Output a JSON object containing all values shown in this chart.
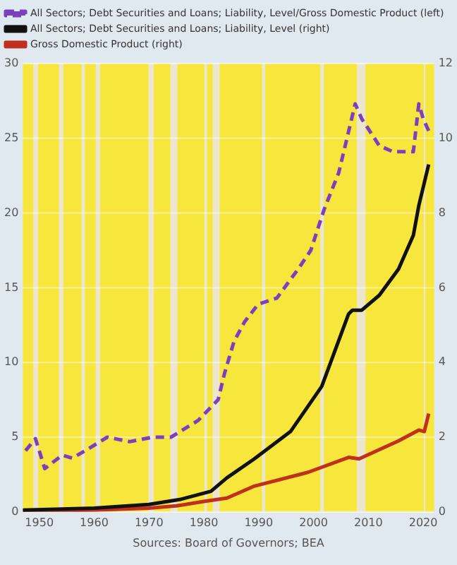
{
  "chart_data": {
    "type": "line",
    "annotations": [
      "Sources: Board of Governors; BEA"
    ],
    "xlim": [
      1947,
      2022
    ],
    "xticks": [
      1950,
      1960,
      1970,
      1980,
      1990,
      2000,
      2010,
      2020
    ],
    "ylim": [
      0,
      30
    ],
    "yticks": [
      0,
      5,
      10,
      15,
      20,
      25,
      30
    ],
    "y2lim": [
      0,
      12
    ],
    "y2ticks": [
      0,
      2,
      4,
      6,
      8,
      10,
      12
    ],
    "grid": "y",
    "legend": "top left",
    "marker": "none",
    "series": [
      {
        "name": "All Sectors; Debt Securities and Loans; Liability, Level/Gross Domestic Product (left)",
        "color": "#7b3fbf",
        "line_style": "dashed",
        "x": [
          1947.5,
          1949.3,
          1951,
          1954.2,
          1956,
          1958.4,
          1962.4,
          1966.5,
          1970.7,
          1974,
          1978.9,
          1982.6,
          1983.8,
          1985.5,
          1987.4,
          1989.9,
          1993.3,
          1997.3,
          1999.5,
          2001.9,
          2004.6,
          2007.6,
          2008.8,
          2012,
          2014.5,
          2018.2,
          2019.2,
          2020,
          2021
        ],
        "values": [
          4.1,
          4.9,
          2.9,
          3.8,
          3.6,
          4.1,
          5.0,
          4.7,
          5.0,
          5.0,
          6.1,
          7.5,
          9.3,
          11.4,
          12.7,
          13.9,
          14.3,
          16.3,
          17.5,
          20.2,
          22.7,
          27.3,
          26.3,
          24.5,
          24.1,
          24.1,
          27.3,
          26.3,
          25.5
        ]
      },
      {
        "name": "All Sectors; Debt Securities and Loans; Liability, Level (right)",
        "color": "#111111",
        "axis": "y2",
        "line_style": "solid",
        "x": [
          1947,
          1960,
          1970,
          1975.6,
          1981.3,
          1984.2,
          1989.2,
          1995.8,
          2001.5,
          2006.4,
          2007.1,
          2008.8,
          2012,
          2015.5,
          2018.2,
          2019.2,
          2021
        ],
        "values": [
          0.05,
          0.1,
          0.2,
          0.33,
          0.55,
          0.91,
          1.42,
          2.15,
          3.36,
          5.3,
          5.4,
          5.4,
          5.8,
          6.5,
          7.4,
          8.2,
          9.3
        ]
      },
      {
        "name": "Gross Domestic Product (right)",
        "color": "#c0301e",
        "axis": "y2",
        "line_style": "solid",
        "x": [
          1947,
          1960,
          1970,
          1975,
          1980,
          1984.2,
          1989.2,
          1999,
          2006.4,
          2008.3,
          2015.5,
          2019.2,
          2020.2,
          2021
        ],
        "values": [
          0.02,
          0.05,
          0.1,
          0.16,
          0.28,
          0.37,
          0.69,
          1.06,
          1.46,
          1.42,
          1.9,
          2.19,
          2.15,
          2.63
        ]
      }
    ],
    "bands": [
      {
        "axis": "x",
        "from": 1948.9,
        "to": 1949.8,
        "color": "#ece6cf"
      },
      {
        "axis": "x",
        "from": 1953.6,
        "to": 1954.4,
        "color": "#ece6cf"
      },
      {
        "axis": "x",
        "from": 1957.7,
        "to": 1958.3,
        "color": "#ece6cf"
      },
      {
        "axis": "x",
        "from": 1960.3,
        "to": 1961.1,
        "color": "#ece6cf"
      },
      {
        "axis": "x",
        "from": 1969.9,
        "to": 1970.9,
        "color": "#ece6cf"
      },
      {
        "axis": "x",
        "from": 1973.9,
        "to": 1975.2,
        "color": "#ece6cf"
      },
      {
        "axis": "x",
        "from": 1980.1,
        "to": 1980.6,
        "color": "#ece6cf"
      },
      {
        "axis": "x",
        "from": 1981.6,
        "to": 1982.9,
        "color": "#ece6cf"
      },
      {
        "axis": "x",
        "from": 1990.6,
        "to": 1991.2,
        "color": "#ece6cf"
      },
      {
        "axis": "x",
        "from": 2001.2,
        "to": 2001.9,
        "color": "#ece6cf"
      },
      {
        "axis": "x",
        "from": 2007.9,
        "to": 2009.5,
        "color": "#ece6cf"
      },
      {
        "axis": "x",
        "from": 2020.1,
        "to": 2020.4,
        "color": "#ece6cf"
      }
    ]
  }
}
